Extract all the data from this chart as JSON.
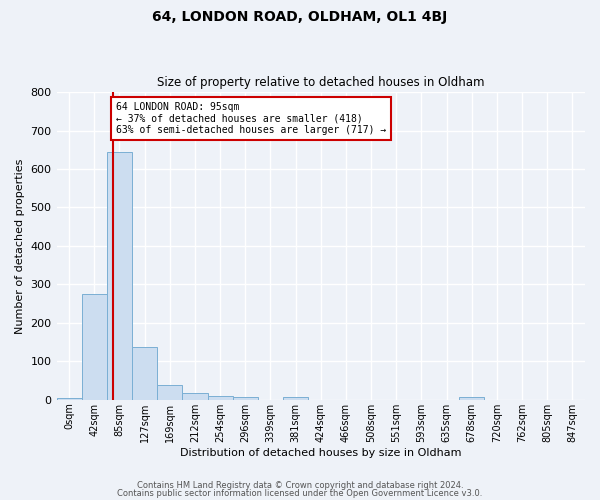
{
  "title": "64, LONDON ROAD, OLDHAM, OL1 4BJ",
  "subtitle": "Size of property relative to detached houses in Oldham",
  "xlabel": "Distribution of detached houses by size in Oldham",
  "ylabel": "Number of detached properties",
  "bin_labels": [
    "0sqm",
    "42sqm",
    "85sqm",
    "127sqm",
    "169sqm",
    "212sqm",
    "254sqm",
    "296sqm",
    "339sqm",
    "381sqm",
    "424sqm",
    "466sqm",
    "508sqm",
    "551sqm",
    "593sqm",
    "635sqm",
    "678sqm",
    "720sqm",
    "762sqm",
    "805sqm",
    "847sqm"
  ],
  "bar_values": [
    5,
    275,
    645,
    138,
    38,
    18,
    10,
    8,
    0,
    8,
    0,
    0,
    0,
    0,
    0,
    0,
    7,
    0,
    0,
    0,
    0
  ],
  "bar_color": "#ccddf0",
  "bar_edge_color": "#7aafd4",
  "redline_x": 1.75,
  "redline_label": "64 LONDON ROAD: 95sqm",
  "annotation_line1": "← 37% of detached houses are smaller (418)",
  "annotation_line2": "63% of semi-detached houses are larger (717) →",
  "box_color": "#ffffff",
  "box_edge_color": "#cc0000",
  "ylim": [
    0,
    800
  ],
  "yticks": [
    0,
    100,
    200,
    300,
    400,
    500,
    600,
    700,
    800
  ],
  "footer_line1": "Contains HM Land Registry data © Crown copyright and database right 2024.",
  "footer_line2": "Contains public sector information licensed under the Open Government Licence v3.0.",
  "background_color": "#eef2f8",
  "grid_color": "#ffffff"
}
